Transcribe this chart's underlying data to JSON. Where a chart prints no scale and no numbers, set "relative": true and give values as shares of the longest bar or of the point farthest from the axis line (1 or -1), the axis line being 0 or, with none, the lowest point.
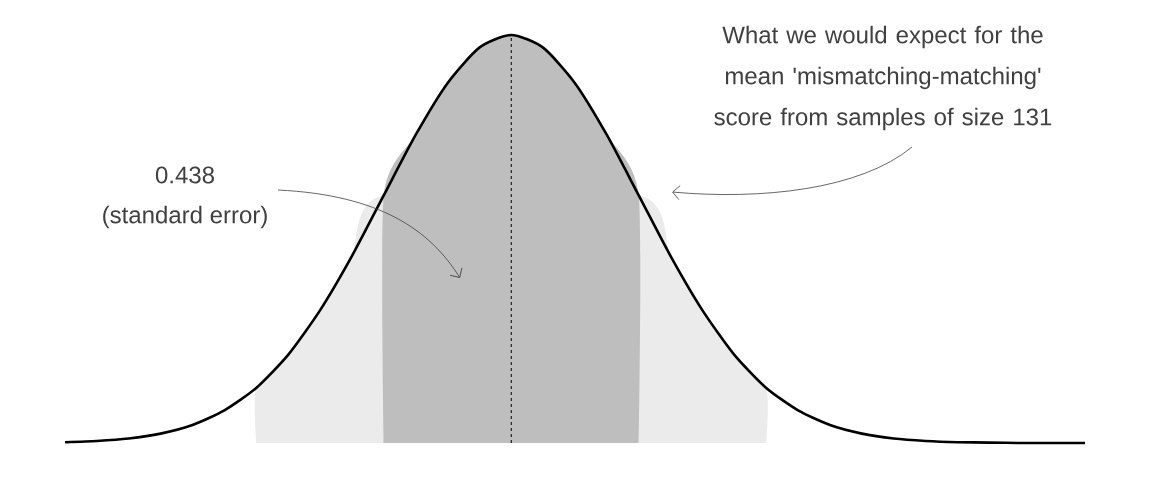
{
  "chart_data": {
    "type": "line",
    "relative": true,
    "categories": [
      null,
      null,
      null,
      null,
      null,
      null,
      null,
      null,
      null,
      null,
      null,
      null,
      null,
      null,
      null,
      null,
      null,
      null,
      null,
      null,
      null,
      null,
      null,
      null,
      null,
      null,
      null,
      null,
      null,
      null,
      null,
      null,
      null
    ],
    "series": [
      {
        "type": "area",
        "color": "#ebebeb",
        "values": [
          null,
          null,
          null,
          null,
          null,
          null,
          0.135,
          0.216,
          0.325,
          0.458,
          0.607,
          null,
          null,
          null,
          null,
          null,
          null,
          null,
          0.607,
          0.458,
          0.325,
          0.216,
          0.135,
          null,
          null,
          null,
          null,
          null,
          null,
          null,
          null,
          null,
          null
        ]
      },
      {
        "type": "area",
        "color": "#bebebe",
        "values": [
          null,
          null,
          null,
          null,
          null,
          null,
          null,
          null,
          null,
          null,
          0.607,
          0.755,
          0.882,
          0.969,
          1,
          0.969,
          0.882,
          0.755,
          0.607,
          null,
          null,
          null,
          null,
          null,
          null,
          null,
          null,
          null,
          null,
          null,
          null,
          null,
          null
        ]
      },
      {
        "color": "#000000",
        "values": [
          0.002,
          0.005,
          0.011,
          0.023,
          0.044,
          0.08,
          0.135,
          0.216,
          0.325,
          0.458,
          0.607,
          0.755,
          0.882,
          0.969,
          1,
          0.969,
          0.882,
          0.755,
          0.607,
          0.458,
          0.325,
          0.216,
          0.135,
          0.08,
          0.044,
          0.023,
          0.011,
          0.005,
          0.002,
          0.001,
          0,
          0,
          0
        ]
      }
    ],
    "annotations": [
      "0.438",
      "(standard error)",
      "What we would expect for the mean 'mismatching-matching' score from samples of size 131"
    ]
  }
}
